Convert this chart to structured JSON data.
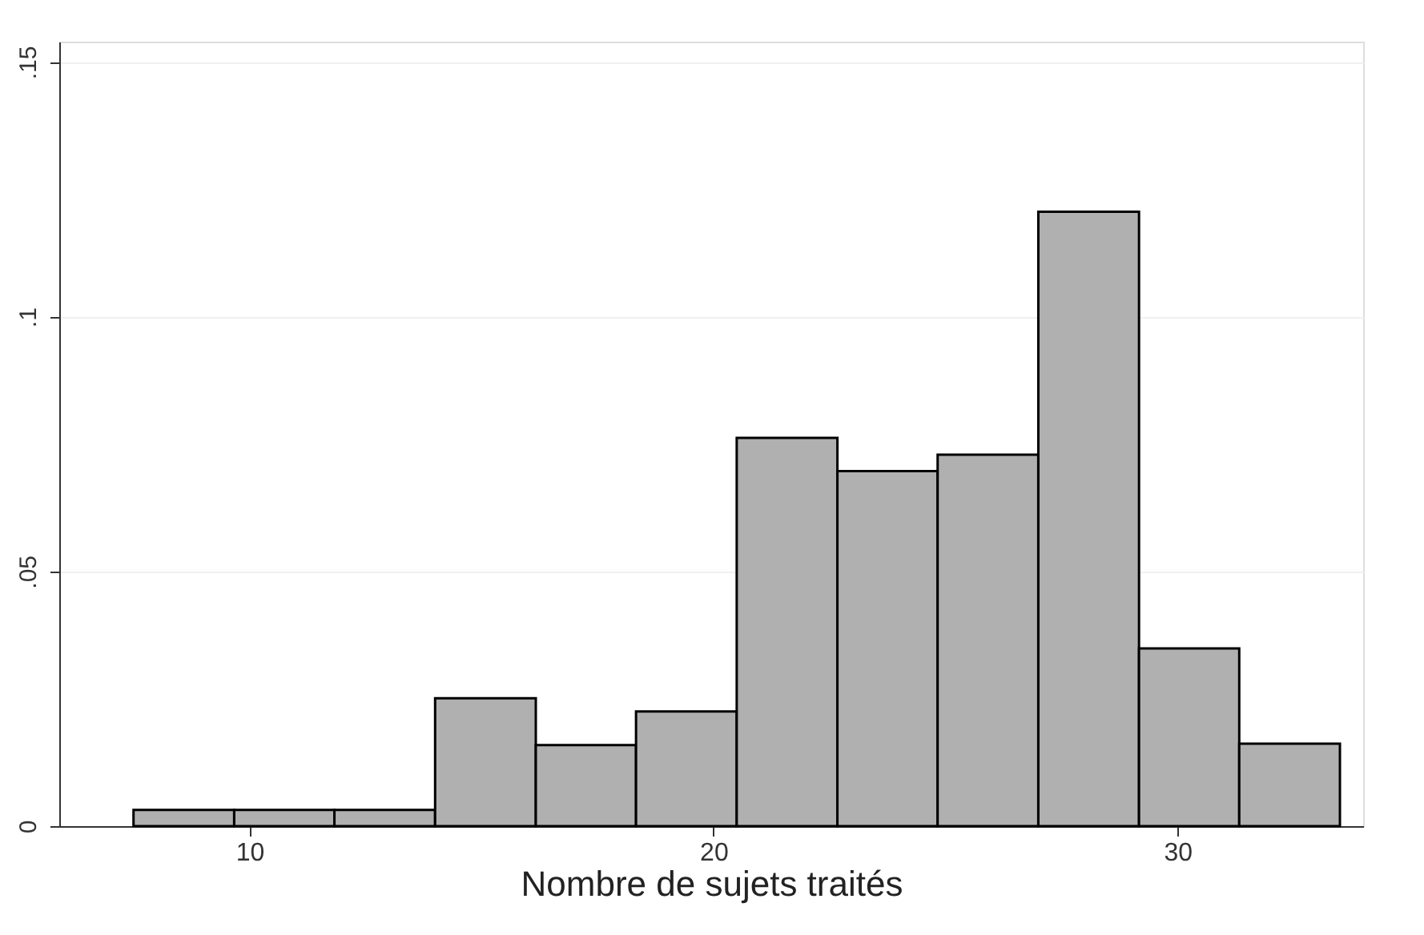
{
  "chart_data": {
    "type": "histogram",
    "xlabel": "Nombre de sujets traités",
    "bins": [
      7.5,
      9.67,
      11.83,
      14,
      16.17,
      18.33,
      20.5,
      22.67,
      24.83,
      27,
      29.17,
      31.33,
      33.5
    ],
    "values": [
      0.0032,
      0.0032,
      0.0032,
      0.0251,
      0.0159,
      0.0225,
      0.0762,
      0.0697,
      0.0729,
      0.1206,
      0.0349,
      0.0162
    ],
    "color": "#b0b0b0",
    "xlim": [
      5.9,
      34
    ],
    "xticks": [
      10,
      20,
      30
    ],
    "ylim": [
      0,
      0.154
    ],
    "yticks": [
      0,
      {
        "value": 0.05,
        "label": ".05"
      },
      {
        "value": 0.1,
        "label": ".1"
      },
      {
        "value": 0.15,
        "label": ".15"
      }
    ],
    "grid": "y"
  }
}
